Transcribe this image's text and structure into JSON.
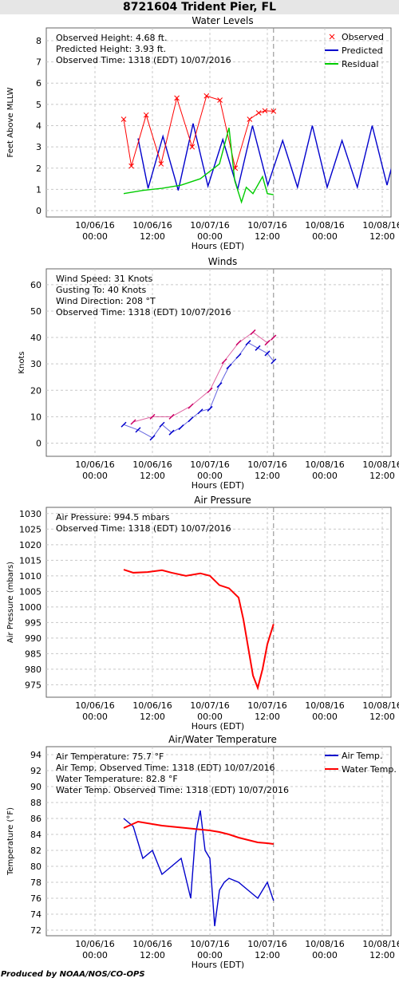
{
  "page_title": "8721604 Trident Pier, FL",
  "footer": "Produced by NOAA/NOS/CO-OPS",
  "x_ticks": [
    {
      "date": "10/06/16",
      "time": "00:00"
    },
    {
      "date": "10/06/16",
      "time": "12:00"
    },
    {
      "date": "10/07/16",
      "time": "00:00"
    },
    {
      "date": "10/07/16",
      "time": "12:00"
    },
    {
      "date": "10/08/16",
      "time": "00:00"
    },
    {
      "date": "10/08/16",
      "time": "12:00"
    }
  ],
  "xlabel": "Hours (EDT)",
  "chart_data": [
    {
      "type": "line",
      "title": "Water Levels",
      "ylabel": "Feet Above MLLW",
      "ylim": [
        -0.3,
        8.6
      ],
      "yticks": [
        0,
        1,
        2,
        3,
        4,
        5,
        6,
        7,
        8
      ],
      "info": [
        "Observed Height:   4.68 ft.",
        "Predicted Height:    3.93 ft.",
        "Observed Time: 1318 (EDT) 10/07/2016"
      ],
      "legend": [
        "Observed",
        "Predicted",
        "Residual"
      ],
      "legend_position": "top-right",
      "colors": {
        "Observed": "#ff0000",
        "Predicted": "#0000cc",
        "Residual": "#00cc00"
      },
      "series": [
        {
          "name": "Predicted",
          "x_hours": [
            -15,
            -12.9,
            -9.8,
            -6.6,
            -3.5,
            -0.4,
            2.7,
            5.8,
            8.9,
            12.1,
            15.2,
            18.3,
            21.4,
            24.5,
            27.6,
            30.8,
            33.9,
            37,
            40.1
          ],
          "values": [
            3.4,
            1.05,
            3.5,
            0.95,
            4.1,
            1.15,
            3.35,
            1.0,
            4.0,
            1.2,
            3.3,
            1.1,
            4.0,
            1.1,
            3.3,
            1.1,
            4.0,
            1.2,
            3.9
          ]
        },
        {
          "name": "Observed",
          "x_hours": [
            -18,
            -16.4,
            -13.3,
            -10.2,
            -6.9,
            -3.7,
            -0.7,
            2.1,
            5.3,
            8.3,
            10.2,
            11.5,
            13.3
          ],
          "values": [
            4.3,
            2.1,
            4.5,
            2.2,
            5.3,
            3.0,
            5.4,
            5.2,
            2.0,
            4.3,
            4.6,
            4.7,
            4.68
          ]
        },
        {
          "name": "Residual",
          "x_hours": [
            -18,
            -14,
            -10,
            -6,
            -2,
            2,
            4,
            5.2,
            6.6,
            7.6,
            9,
            11,
            12,
            13.3
          ],
          "values": [
            0.8,
            0.95,
            1.05,
            1.2,
            1.5,
            2.2,
            3.9,
            1.4,
            0.4,
            1.1,
            0.8,
            1.6,
            0.8,
            0.75
          ]
        }
      ]
    },
    {
      "type": "scatter",
      "title": "Winds",
      "ylabel": "Knots",
      "ylim": [
        -5,
        66
      ],
      "yticks": [
        0,
        10,
        20,
        30,
        40,
        50,
        60
      ],
      "info": [
        "Wind Speed: 31 Knots",
        "Gusting To: 40 Knots",
        "Wind Direction: 208 °T",
        "Observed Time: 1318 (EDT) 10/07/2016"
      ],
      "series": [
        {
          "name": "Wind Speed",
          "color": "#0000cc",
          "x_hours": [
            -18,
            -15,
            -12,
            -10,
            -8,
            -6,
            -4,
            -2,
            0,
            2,
            4,
            6,
            8,
            10,
            12,
            13.3
          ],
          "values": [
            7,
            5,
            2,
            7,
            4,
            6,
            9,
            12,
            13,
            22,
            29,
            33,
            38,
            36,
            34,
            31
          ]
        },
        {
          "name": "Gusts",
          "color": "#cc0066",
          "x_hours": [
            -16,
            -12,
            -8,
            -4,
            0,
            3,
            6,
            9,
            12,
            13.3
          ],
          "values": [
            8,
            10,
            10,
            14,
            20,
            31,
            38,
            42,
            38,
            40
          ]
        }
      ]
    },
    {
      "type": "line",
      "title": "Air Pressure",
      "ylabel": "Air Pressure (mbars)",
      "ylim": [
        971,
        1032
      ],
      "yticks": [
        975,
        980,
        985,
        990,
        995,
        1000,
        1005,
        1010,
        1015,
        1020,
        1025,
        1030
      ],
      "info": [
        "Air Pressure: 994.5 mbars",
        "Observed Time: 1318 (EDT) 10/07/2016"
      ],
      "series": [
        {
          "name": "Air Pressure",
          "color": "#ff0000",
          "x_hours": [
            -18,
            -16,
            -13,
            -10,
            -8,
            -5,
            -2,
            0,
            2,
            4,
            6,
            7,
            8,
            9,
            10,
            11,
            12,
            13.3
          ],
          "values": [
            1012,
            1011,
            1011.2,
            1011.8,
            1011,
            1010,
            1010.8,
            1010,
            1007,
            1006,
            1003,
            996,
            987,
            978,
            974,
            980,
            988,
            994.5
          ]
        }
      ]
    },
    {
      "type": "line",
      "title": "Air/Water Temperature",
      "ylabel": "Temperature (°F)",
      "ylim": [
        71.3,
        95
      ],
      "yticks": [
        72,
        74,
        76,
        78,
        80,
        82,
        84,
        86,
        88,
        90,
        92,
        94
      ],
      "info": [
        "Air Temperature:  75.7 °F",
        "Air Temp. Observed Time: 1318 (EDT) 10/07/2016",
        "Water Temperature:  82.8 °F",
        "Water Temp. Observed Time: 1318 (EDT) 10/07/2016"
      ],
      "legend": [
        "Air Temp.",
        "Water Temp."
      ],
      "legend_position": "top-right",
      "series": [
        {
          "name": "Air Temp.",
          "color": "#0000cc",
          "x_hours": [
            -18,
            -16,
            -14,
            -12,
            -10,
            -8,
            -6,
            -4,
            -3,
            -2,
            -1,
            0,
            1,
            2,
            3,
            4,
            6,
            8,
            10,
            12,
            13.3
          ],
          "values": [
            86,
            85,
            81,
            82,
            79,
            80,
            81,
            76,
            84,
            87,
            82,
            81,
            72.5,
            77,
            78,
            78.5,
            78,
            77,
            76,
            78,
            75.7
          ]
        },
        {
          "name": "Water Temp.",
          "color": "#ff0000",
          "x_hours": [
            -18,
            -15,
            -10,
            -5,
            0,
            2,
            4,
            6,
            8,
            10,
            12,
            13.3
          ],
          "values": [
            84.8,
            85.6,
            85.1,
            84.8,
            84.5,
            84.3,
            84.0,
            83.6,
            83.3,
            83.0,
            82.9,
            82.8
          ]
        }
      ]
    }
  ]
}
